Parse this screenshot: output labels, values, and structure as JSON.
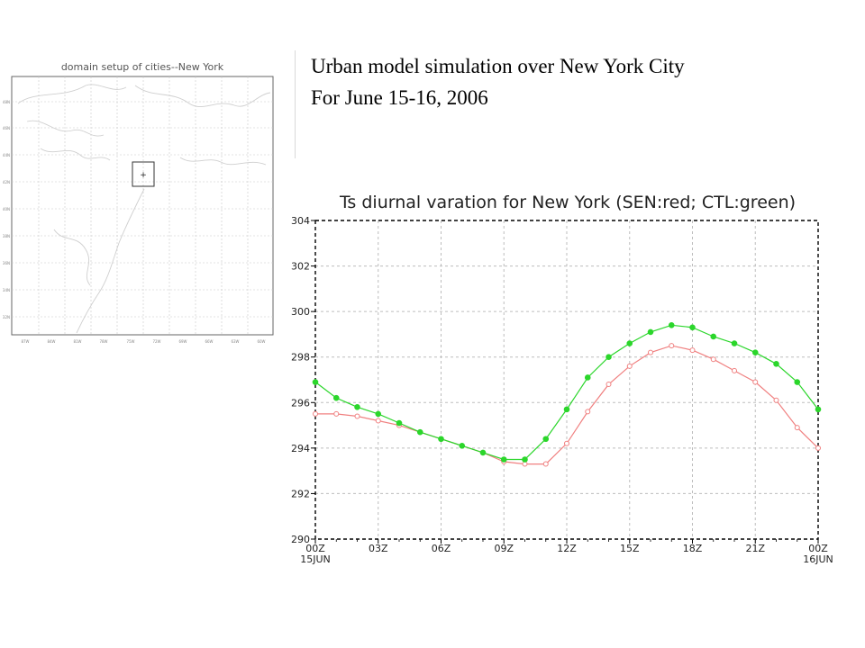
{
  "slide": {
    "title_line1": "Urban model simulation over New York City",
    "title_line2": "For June 15-16, 2006"
  },
  "map": {
    "title": "domain setup of cities--New York",
    "marker": "+"
  },
  "chart_data": {
    "type": "line",
    "title": "Ts diurnal varation for New York (SEN:red; CTL:green)",
    "xlabel": "",
    "ylabel": "",
    "x_ticks": [
      "00Z",
      "03Z",
      "06Z",
      "09Z",
      "12Z",
      "15Z",
      "18Z",
      "21Z",
      "00Z"
    ],
    "x_date_labels": [
      "15JUN",
      "",
      "",
      "",
      "",
      "",
      "",
      "",
      "16JUN"
    ],
    "y_ticks": [
      290,
      292,
      294,
      296,
      298,
      300,
      302,
      304
    ],
    "xlim": [
      0,
      24
    ],
    "ylim": [
      290,
      304
    ],
    "grid": true,
    "x": [
      0,
      1,
      2,
      3,
      4,
      5,
      6,
      7,
      8,
      9,
      10,
      11,
      12,
      13,
      14,
      15,
      16,
      17,
      18,
      19,
      20,
      21,
      22,
      23,
      24
    ],
    "series": [
      {
        "name": "SEN",
        "color": "#f08080",
        "marker": "open-circle",
        "values": [
          295.5,
          295.5,
          295.4,
          295.2,
          295.0,
          294.7,
          294.4,
          294.1,
          293.8,
          293.4,
          293.3,
          293.3,
          294.2,
          295.6,
          296.8,
          297.6,
          298.2,
          298.5,
          298.3,
          297.9,
          297.4,
          296.9,
          296.1,
          294.9,
          294.0
        ]
      },
      {
        "name": "CTL",
        "color": "#2bd62b",
        "marker": "filled-circle",
        "values": [
          296.9,
          296.2,
          295.8,
          295.5,
          295.1,
          294.7,
          294.4,
          294.1,
          293.8,
          293.5,
          293.5,
          294.4,
          295.7,
          297.1,
          298.0,
          298.6,
          299.1,
          299.4,
          299.3,
          298.9,
          298.6,
          298.2,
          297.7,
          296.9,
          295.7
        ]
      }
    ]
  }
}
